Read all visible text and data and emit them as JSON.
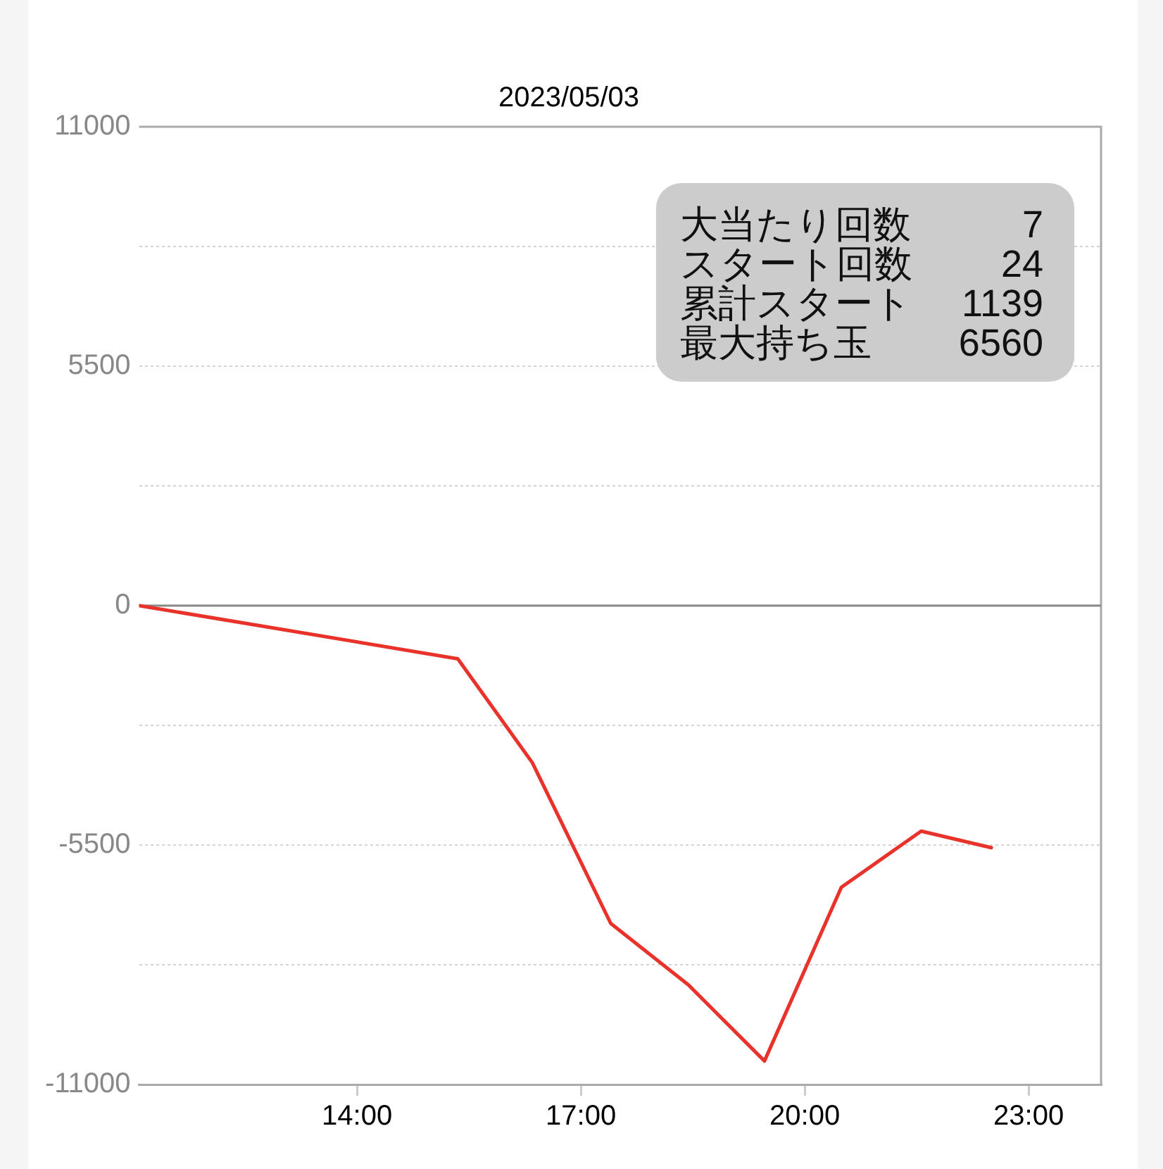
{
  "chart_data": {
    "type": "line",
    "title": "2023/05/03",
    "x": [
      11.08,
      15.35,
      16.35,
      17.4,
      18.44,
      19.46,
      20.49,
      21.56,
      22.5
    ],
    "series": [
      {
        "color": "#e8322a",
        "values": [
          0,
          -1220,
          -3610,
          -7300,
          -8710,
          -10460,
          -6470,
          -5180,
          -5560
        ]
      }
    ],
    "xlim": [
      11.08,
      23.97
    ],
    "xticks": [
      {
        "value": 14,
        "label": "14:00"
      },
      {
        "value": 17,
        "label": "17:00"
      },
      {
        "value": 20,
        "label": "20:00"
      },
      {
        "value": 23,
        "label": "23:00"
      }
    ],
    "ylim": [
      -11000,
      11000
    ],
    "yticks": [
      -11000,
      {
        "value": -8250,
        "label": null
      },
      -5500,
      {
        "value": -2750,
        "label": null
      },
      0,
      {
        "value": 2750,
        "label": null
      },
      5500,
      {
        "value": 8250,
        "label": null
      },
      11000
    ],
    "grid": "y",
    "marker": "none",
    "line_style": "solid",
    "ref_lines": [
      {
        "axis": "y",
        "value": 0,
        "color": "#888888"
      }
    ],
    "annotations": [
      "大当たり回数",
      "7",
      "スタート回数",
      "24",
      "累計スタート",
      "1139",
      "最大持ち玉",
      "6560"
    ]
  }
}
